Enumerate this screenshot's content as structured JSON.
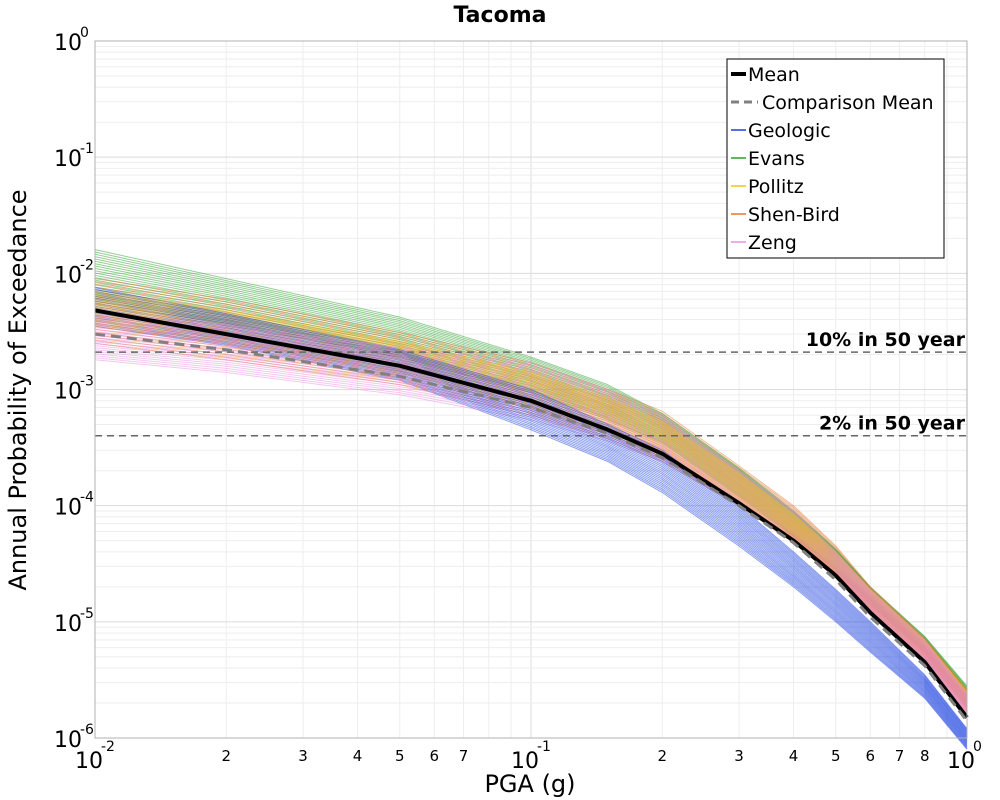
{
  "chart_data": {
    "type": "line",
    "title": "Tacoma",
    "xlabel": "PGA (g)",
    "ylabel": "Annual Probability of Exceedance",
    "xscale": "log",
    "yscale": "log",
    "xlim": [
      0.01,
      1.0
    ],
    "ylim": [
      1e-06,
      1.0
    ],
    "grid": true,
    "legend_position": "top-right",
    "x": [
      0.01,
      0.02,
      0.05,
      0.1,
      0.15,
      0.2,
      0.3,
      0.4,
      0.5,
      0.6,
      0.8,
      1.0
    ],
    "y_ticks": [
      {
        "base": "10",
        "exp": "0",
        "value": 1.0
      },
      {
        "base": "10",
        "exp": "-1",
        "value": 0.1
      },
      {
        "base": "10",
        "exp": "-2",
        "value": 0.01
      },
      {
        "base": "10",
        "exp": "-3",
        "value": 0.001
      },
      {
        "base": "10",
        "exp": "-4",
        "value": 0.0001
      },
      {
        "base": "10",
        "exp": "-5",
        "value": 1e-05
      },
      {
        "base": "10",
        "exp": "-6",
        "value": 1e-06
      }
    ],
    "x_ticks_major": [
      {
        "base": "10",
        "exp": "-2",
        "value": 0.01
      },
      {
        "base": "10",
        "exp": "-1",
        "value": 0.1
      },
      {
        "base": "10",
        "exp": "0",
        "value": 1.0
      }
    ],
    "x_ticks_minor": [
      {
        "label": "2",
        "value": 0.02
      },
      {
        "label": "3",
        "value": 0.03
      },
      {
        "label": "4",
        "value": 0.04
      },
      {
        "label": "5",
        "value": 0.05
      },
      {
        "label": "6",
        "value": 0.06
      },
      {
        "label": "7",
        "value": 0.07
      },
      {
        "label": "2",
        "value": 0.2
      },
      {
        "label": "3",
        "value": 0.3
      },
      {
        "label": "4",
        "value": 0.4
      },
      {
        "label": "5",
        "value": 0.5
      },
      {
        "label": "6",
        "value": 0.6
      },
      {
        "label": "7",
        "value": 0.7
      },
      {
        "label": "8",
        "value": 0.8
      }
    ],
    "series": [
      {
        "name": "Mean",
        "color": "#000000",
        "style": "solid-thick",
        "values": [
          0.0048,
          0.003,
          0.0016,
          0.0008,
          0.00045,
          0.00028,
          0.000105,
          5e-05,
          2.5e-05,
          1.2e-05,
          4.5e-06,
          1.5e-06
        ]
      },
      {
        "name": "Comparison Mean",
        "color": "#808080",
        "style": "dashed",
        "values": [
          0.003,
          0.0022,
          0.0013,
          0.0007,
          0.00042,
          0.00026,
          0.0001,
          4.8e-05,
          2.3e-05,
          1.1e-05,
          4.2e-06,
          1.4e-06
        ]
      },
      {
        "name": "Geologic",
        "color": "#1a3fe0",
        "style": "band",
        "lower": [
          0.0035,
          0.0024,
          0.0012,
          0.00045,
          0.00024,
          0.00013,
          4.5e-05,
          2e-05,
          1e-05,
          5.5e-06,
          2.2e-06,
          8e-07
        ],
        "upper": [
          0.0075,
          0.0045,
          0.0022,
          0.001,
          0.0005,
          0.0003,
          0.0001,
          4e-05,
          1.9e-05,
          1e-05,
          3.5e-06,
          1.2e-06
        ]
      },
      {
        "name": "Evans",
        "color": "#2ca02c",
        "style": "band",
        "lower": [
          0.0055,
          0.0037,
          0.0019,
          0.00095,
          0.00055,
          0.00035,
          0.00012,
          5.5e-05,
          2.8e-05,
          1.4e-05,
          5.5e-06,
          1.8e-06
        ],
        "upper": [
          0.016,
          0.009,
          0.0042,
          0.0019,
          0.0011,
          0.00062,
          0.00021,
          9e-05,
          4.2e-05,
          2e-05,
          7.5e-06,
          2.8e-06
        ]
      },
      {
        "name": "Pollitz",
        "color": "#f0c020",
        "style": "band",
        "lower": [
          0.0035,
          0.0025,
          0.0014,
          0.0007,
          0.00042,
          0.00026,
          0.0001,
          5e-05,
          2.5e-05,
          1.3e-05,
          5e-06,
          1.8e-06
        ],
        "upper": [
          0.007,
          0.0048,
          0.0026,
          0.0014,
          0.00085,
          0.00053,
          0.00019,
          8.5e-05,
          4e-05,
          1.9e-05,
          7e-06,
          2.5e-06
        ]
      },
      {
        "name": "Shen-Bird",
        "color": "#e8742a",
        "style": "band",
        "lower": [
          0.0025,
          0.0018,
          0.0011,
          0.0006,
          0.00038,
          0.00024,
          0.0001,
          4.8e-05,
          2.4e-05,
          1.2e-05,
          4.8e-06,
          1.6e-06
        ],
        "upper": [
          0.009,
          0.006,
          0.0031,
          0.0017,
          0.001,
          0.00065,
          0.00022,
          0.0001,
          4.5e-05,
          2e-05,
          7.2e-06,
          2.6e-06
        ]
      },
      {
        "name": "Zeng",
        "color": "#e890e0",
        "style": "band",
        "lower": [
          0.0018,
          0.0014,
          0.0009,
          0.00055,
          0.00036,
          0.00024,
          0.0001,
          5e-05,
          2.5e-05,
          1.2e-05,
          4.5e-06,
          1.5e-06
        ],
        "upper": [
          0.0045,
          0.0036,
          0.0023,
          0.0017,
          0.001,
          0.0006,
          0.0002,
          9e-05,
          4e-05,
          1.9e-05,
          7e-06,
          2.4e-06
        ]
      }
    ],
    "reference_lines": [
      {
        "label": "10% in 50 year",
        "y": 0.0021,
        "color": "#666666"
      },
      {
        "label": "2% in 50 year",
        "y": 0.0004,
        "color": "#666666"
      }
    ]
  }
}
